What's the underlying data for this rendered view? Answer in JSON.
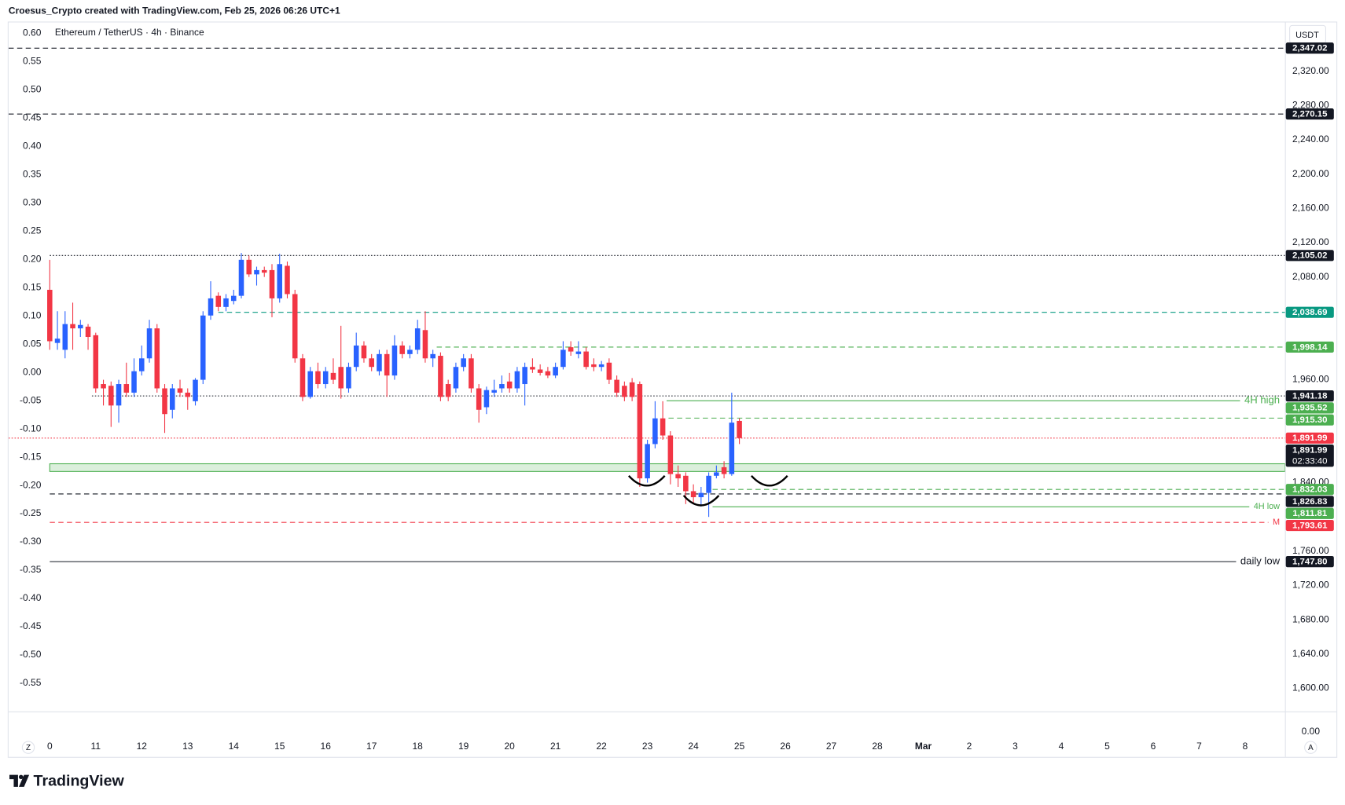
{
  "header": {
    "author_line": "Croesus_Crypto created with TradingView.com, Feb 25, 2026 06:26 UTC+1",
    "logo": "TradingView"
  },
  "chart_data": {
    "type": "candlestick",
    "title": "Ethereum / TetherUS · 4h · Binance",
    "currency": "USDT",
    "x": [
      0,
      4,
      8,
      12,
      16,
      20,
      24,
      28,
      32,
      36,
      40,
      44,
      48,
      52,
      56,
      60,
      64,
      68,
      72,
      76,
      80,
      84,
      88,
      92,
      96,
      100,
      104,
      108,
      112,
      116,
      120,
      124,
      128,
      132,
      136,
      140,
      144,
      148,
      152,
      156,
      160,
      164,
      168,
      172,
      176,
      180,
      184,
      188,
      192,
      196,
      200,
      204,
      208,
      212,
      216,
      220,
      224,
      228,
      232,
      236,
      240,
      244,
      248,
      252,
      256,
      260,
      264,
      268,
      272,
      276,
      280,
      284,
      288,
      292,
      296,
      300,
      304,
      308,
      312,
      316,
      320,
      324,
      328,
      332,
      336,
      340,
      344,
      348,
      352,
      356,
      360
    ],
    "open": [
      2065,
      2003,
      1995,
      2025,
      2020,
      2022,
      2012,
      1955,
      1953,
      1930,
      1955,
      1945,
      1970,
      1985,
      2020,
      1950,
      1925,
      1950,
      1945,
      1935,
      1960,
      2035,
      2058,
      2045,
      2052,
      2058,
      2100,
      2083,
      2088,
      2088,
      2055,
      2093,
      2060,
      1985,
      1940,
      1970,
      1955,
      1968,
      1975,
      1950,
      1975,
      2000,
      1985,
      1970,
      1990,
      1965,
      2000,
      1990,
      1995,
      2018,
      1985,
      1988,
      1955,
      1950,
      1975,
      1985,
      1950,
      1928,
      1945,
      1950,
      1958,
      1950,
      1955,
      1975,
      1972,
      1970,
      1965,
      1975,
      1998,
      1990,
      1993,
      1978,
      1975,
      1980,
      1960,
      1953,
      1957,
      1955,
      1845,
      1885,
      1915,
      1895,
      1850,
      1848,
      1830,
      1823,
      1828,
      1848,
      1858,
      1850,
      1912
    ],
    "high": [
      2100,
      2040,
      2040,
      2050,
      2030,
      2025,
      2015,
      1960,
      1958,
      1960,
      1980,
      1985,
      2000,
      2030,
      2025,
      1955,
      1955,
      1960,
      1950,
      1962,
      2040,
      2075,
      2062,
      2060,
      2065,
      2108,
      2105,
      2092,
      2092,
      2095,
      2107,
      2098,
      2065,
      1990,
      1975,
      1980,
      1975,
      1985,
      2023,
      1980,
      2015,
      2005,
      1990,
      1995,
      1995,
      2012,
      2005,
      2000,
      2030,
      2040,
      1995,
      1992,
      1960,
      1980,
      1990,
      1990,
      1955,
      1952,
      1960,
      1965,
      1968,
      1975,
      1980,
      1985,
      1978,
      1975,
      1980,
      2005,
      2005,
      2005,
      1998,
      1985,
      1982,
      1985,
      1965,
      1958,
      1962,
      1958,
      1890,
      1935,
      1935,
      1900,
      1860,
      1852,
      1838,
      1835,
      1852,
      1860,
      1865,
      1945,
      1915
    ],
    "low": [
      1995,
      1995,
      1985,
      1995,
      2010,
      1995,
      1945,
      1930,
      1905,
      1910,
      1940,
      1940,
      1965,
      1980,
      1945,
      1898,
      1915,
      1940,
      1925,
      1930,
      1955,
      2030,
      2040,
      2040,
      2048,
      2055,
      2080,
      2070,
      2080,
      2033,
      2050,
      2055,
      1980,
      1935,
      1938,
      1950,
      1950,
      1955,
      1938,
      1945,
      1970,
      1980,
      1970,
      1965,
      1940,
      1960,
      1985,
      1985,
      1990,
      1980,
      1975,
      1935,
      1935,
      1945,
      1970,
      1945,
      1910,
      1920,
      1940,
      1945,
      1945,
      1945,
      1930,
      1968,
      1965,
      1962,
      1962,
      1972,
      1988,
      1985,
      1972,
      1970,
      1970,
      1955,
      1940,
      1935,
      1935,
      1835,
      1840,
      1880,
      1890,
      1838,
      1835,
      1815,
      1815,
      1812,
      1800,
      1845,
      1845,
      1848,
      1885
    ],
    "close": [
      2005,
      2008,
      2025,
      2020,
      2024,
      2010,
      1950,
      1950,
      1930,
      1955,
      1945,
      1970,
      1985,
      2020,
      1950,
      1920,
      1950,
      1945,
      1940,
      1960,
      2035,
      2055,
      2045,
      2055,
      2058,
      2100,
      2083,
      2088,
      2085,
      2055,
      2095,
      2060,
      1985,
      1940,
      1970,
      1955,
      1970,
      1960,
      1950,
      1975,
      2000,
      1985,
      1975,
      1990,
      1965,
      2000,
      1990,
      1995,
      2020,
      1985,
      1990,
      1940,
      1940,
      1975,
      1985,
      1950,
      1925,
      1948,
      1948,
      1955,
      1950,
      1970,
      1975,
      1972,
      1968,
      1965,
      1975,
      1995,
      1993,
      1993,
      1975,
      1975,
      1978,
      1960,
      1945,
      1940,
      1940,
      1845,
      1885,
      1915,
      1895,
      1850,
      1845,
      1830,
      1823,
      1828,
      1848,
      1852,
      1850,
      1910,
      1891.99
    ],
    "up_color": "#2962ff",
    "down_color": "#f23645",
    "xlim": [
      -21.5,
      644.8
    ],
    "xticks": [
      {
        "value": 0,
        "label": "0"
      },
      {
        "value": 24,
        "label": "11"
      },
      {
        "value": 48,
        "label": "12"
      },
      {
        "value": 72,
        "label": "13"
      },
      {
        "value": 96,
        "label": "14"
      },
      {
        "value": 120,
        "label": "15"
      },
      {
        "value": 144,
        "label": "16"
      },
      {
        "value": 168,
        "label": "17"
      },
      {
        "value": 192,
        "label": "18"
      },
      {
        "value": 216,
        "label": "19"
      },
      {
        "value": 240,
        "label": "20"
      },
      {
        "value": 264,
        "label": "21"
      },
      {
        "value": 288,
        "label": "22"
      },
      {
        "value": 312,
        "label": "23"
      },
      {
        "value": 336,
        "label": "24"
      },
      {
        "value": 360,
        "label": "25"
      },
      {
        "value": 384,
        "label": "26"
      },
      {
        "value": 408,
        "label": "27"
      },
      {
        "value": 432,
        "label": "28"
      },
      {
        "value": 456,
        "label": "Mar"
      },
      {
        "value": 480,
        "label": "2"
      },
      {
        "value": 504,
        "label": "3"
      },
      {
        "value": 528,
        "label": "4"
      },
      {
        "value": 552,
        "label": "5"
      },
      {
        "value": 576,
        "label": "6"
      },
      {
        "value": 600,
        "label": "7"
      },
      {
        "value": 624,
        "label": "8"
      }
    ],
    "ylim": [
      1573,
      2378
    ],
    "yticks": [
      {
        "value": 2320,
        "label": "2,320.00"
      },
      {
        "value": 2280,
        "label": "2,280.00"
      },
      {
        "value": 2240,
        "label": "2,240.00"
      },
      {
        "value": 2200,
        "label": "2,200.00"
      },
      {
        "value": 2160,
        "label": "2,160.00"
      },
      {
        "value": 2120,
        "label": "2,120.00"
      },
      {
        "value": 2080,
        "label": "2,080.00"
      },
      {
        "value": 1960,
        "label": "1,960.00"
      },
      {
        "value": 1840,
        "label": "1,840.00"
      },
      {
        "value": 1760,
        "label": "1,760.00"
      },
      {
        "value": 1720,
        "label": "1,720.00"
      },
      {
        "value": 1680,
        "label": "1,680.00"
      },
      {
        "value": 1640,
        "label": "1,640.00"
      },
      {
        "value": 1600,
        "label": "1,600.00"
      }
    ],
    "y2lim": [
      -0.6,
      0.621
    ],
    "y2ticks": [
      {
        "value": 0.6,
        "label": "0.60"
      },
      {
        "value": 0.55,
        "label": "0.55"
      },
      {
        "value": 0.5,
        "label": "0.50"
      },
      {
        "value": 0.45,
        "label": "0.45"
      },
      {
        "value": 0.4,
        "label": "0.40"
      },
      {
        "value": 0.35,
        "label": "0.35"
      },
      {
        "value": 0.3,
        "label": "0.30"
      },
      {
        "value": 0.25,
        "label": "0.25"
      },
      {
        "value": 0.2,
        "label": "0.20"
      },
      {
        "value": 0.15,
        "label": "0.15"
      },
      {
        "value": 0.1,
        "label": "0.10"
      },
      {
        "value": 0.05,
        "label": "0.05"
      },
      {
        "value": 0,
        "label": "0.00"
      },
      {
        "value": -0.05,
        "label": "-0.05"
      },
      {
        "value": -0.1,
        "label": "-0.10"
      },
      {
        "value": -0.15,
        "label": "-0.15"
      },
      {
        "value": -0.2,
        "label": "-0.20"
      },
      {
        "value": -0.25,
        "label": "-0.25"
      },
      {
        "value": -0.3,
        "label": "-0.30"
      },
      {
        "value": -0.35,
        "label": "-0.35"
      },
      {
        "value": -0.4,
        "label": "-0.40"
      },
      {
        "value": -0.45,
        "label": "-0.45"
      },
      {
        "value": -0.5,
        "label": "-0.50"
      },
      {
        "value": -0.55,
        "label": "-0.55"
      }
    ],
    "lower_pane_tick": {
      "value": 0,
      "label": "0.00"
    },
    "levels": [
      {
        "value": 2347.02,
        "label": "2,347.02",
        "color": "#131722",
        "dash": "dashed"
      },
      {
        "value": 2270.15,
        "label": "2,270.15",
        "color": "#131722",
        "dash": "dashed"
      },
      {
        "value": 2105.02,
        "label": "2,105.02",
        "color": "#131722",
        "dash": "dotted",
        "from": 0
      },
      {
        "value": 2038.69,
        "label": "2,038.69",
        "color": "#089981",
        "dash": "dashed",
        "from": 88
      },
      {
        "value": 1998.14,
        "label": "1,998.14",
        "color": "#4caf50",
        "dash": "dashed",
        "from": 202
      },
      {
        "value": 1941.18,
        "label": "1,941.18",
        "color": "#131722",
        "dash": "dotted",
        "from": 22
      },
      {
        "value": 1935.52,
        "label": "1,935.52",
        "color": "#4caf50",
        "dash": "solid",
        "from": 322,
        "text": "4H high"
      },
      {
        "value": 1915.3,
        "label": "1,915.30",
        "color": "#4caf50",
        "dash": "dashed",
        "from": 323
      },
      {
        "value": 1891.99,
        "label": "1,891.99",
        "color": "#f23645",
        "dash": "dotted"
      },
      {
        "value": 1832.03,
        "label": "1,832.03",
        "color": "#4caf50",
        "dash": "dashed",
        "from": 346
      },
      {
        "value": 1826.83,
        "label": "1,826.83",
        "color": "#131722",
        "dash": "dashed",
        "from": 0
      },
      {
        "value": 1811.81,
        "label": "1,811.81",
        "color": "#4caf50",
        "dash": "solid",
        "from": 346,
        "text": "4H low"
      },
      {
        "value": 1793.61,
        "label": "1,793.61",
        "color": "#f23645",
        "dash": "dashed",
        "from": 0,
        "text": "M"
      },
      {
        "value": 1747.8,
        "label": "1,747.80",
        "color": "#131722",
        "dash": "solid",
        "from": 0,
        "text": "daily low"
      }
    ],
    "zones": [
      {
        "low": 1853,
        "high": 1862,
        "color": "#4caf50"
      }
    ],
    "countdown": {
      "value": 1891.99,
      "label": "1,891.99",
      "timer": "02:33:40"
    },
    "buttons": {
      "left": "Z",
      "right": "A"
    }
  }
}
